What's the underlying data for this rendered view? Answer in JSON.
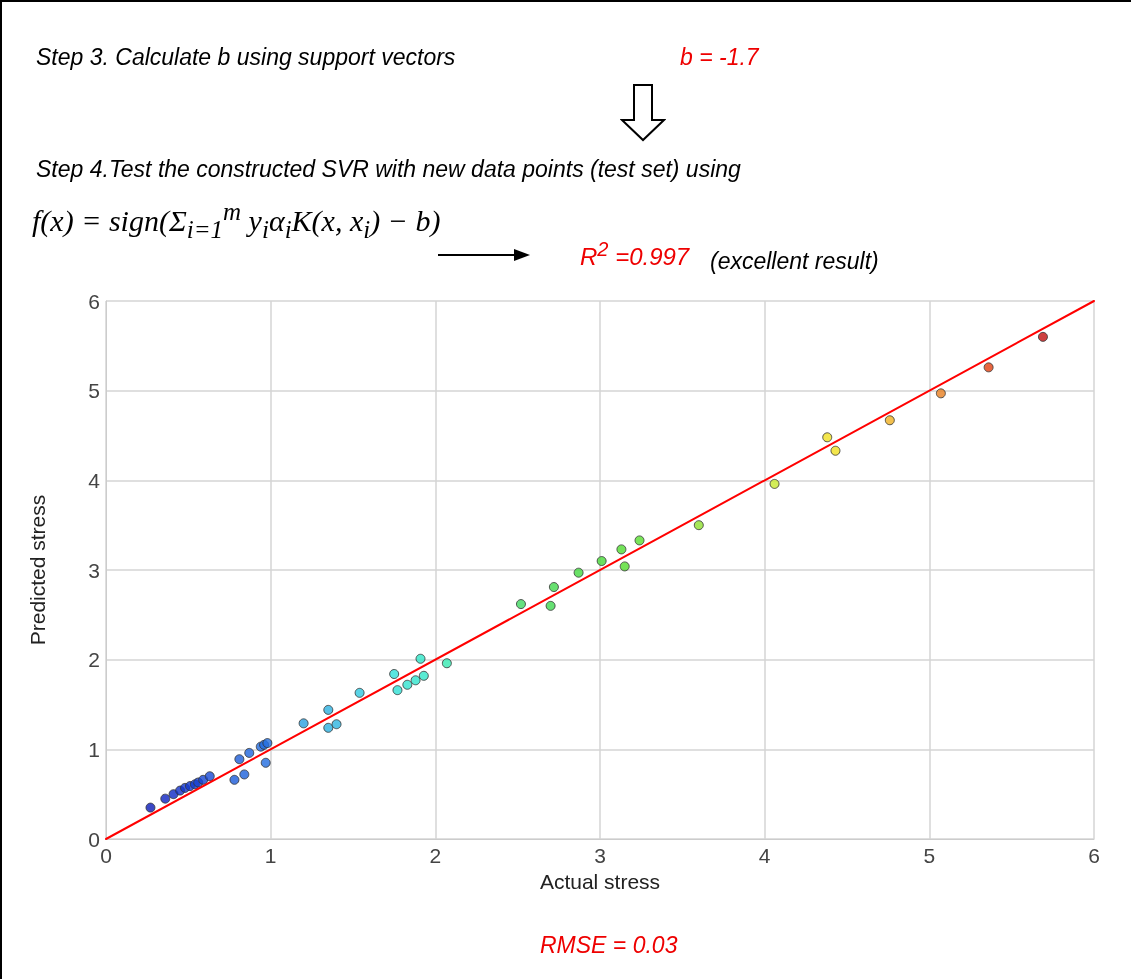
{
  "chart_data": {
    "type": "scatter",
    "annotations": [
      "Step 3. Calculate b using support vectors",
      "b = -1.7",
      "Step 4.Test the constructed SVR with new data points (test set) using",
      "f(x) = sign(Σ$_{i=1}$$^{m}$ y$_{i}$α$_{i}$K(x, x$_{i}$) − b)",
      "R$^{2}$ =0.997",
      "(excellent result)",
      "RMSE = 0.03"
    ],
    "xlabel": "Actual stress",
    "ylabel": "Predicted stress",
    "xlim": [
      0,
      6
    ],
    "xticks": [
      0,
      1,
      2,
      3,
      4,
      5,
      6
    ],
    "ylim": [
      0,
      6
    ],
    "yticks": [
      0,
      1,
      2,
      3,
      4,
      5,
      6
    ],
    "grid": true,
    "marker": "circle",
    "series": [
      {
        "x": [
          0.27,
          0.36,
          0.41,
          0.45,
          0.48,
          0.51,
          0.54,
          0.56,
          0.59,
          0.63,
          0.78,
          0.84,
          0.81,
          0.87,
          0.94,
          0.96,
          0.98,
          0.97,
          1.2,
          1.35,
          1.35,
          1.4,
          1.54,
          1.75,
          1.77,
          1.83,
          1.88,
          1.93,
          1.91,
          2.07,
          2.52,
          2.7,
          2.72,
          2.87,
          3.01,
          3.13,
          3.15,
          3.24,
          3.6,
          4.06,
          4.38,
          4.43,
          4.76,
          5.07,
          5.36,
          5.69
        ],
        "values": [
          0.35,
          0.45,
          0.5,
          0.54,
          0.57,
          0.59,
          0.61,
          0.63,
          0.66,
          0.7,
          0.66,
          0.72,
          0.89,
          0.96,
          1.03,
          1.05,
          1.07,
          0.85,
          1.29,
          1.44,
          1.24,
          1.28,
          1.63,
          1.84,
          1.66,
          1.72,
          1.77,
          1.82,
          2.01,
          1.96,
          2.62,
          2.6,
          2.81,
          2.97,
          3.1,
          3.23,
          3.04,
          3.33,
          3.5,
          3.96,
          4.48,
          4.33,
          4.67,
          4.97,
          5.26,
          5.6
        ],
        "colors": [
          "#0a1ab8",
          "#0c22c0",
          "#0e28c4",
          "#1030c8",
          "#1034cc",
          "#1238cc",
          "#123ccf",
          "#1440d0",
          "#1444d2",
          "#1648d4",
          "#1a5ad8",
          "#1c60da",
          "#1c5cd8",
          "#1e64dc",
          "#206ade",
          "#206cde",
          "#226ee0",
          "#206ce0",
          "#28a0e0",
          "#2cb0e0",
          "#2cb0e0",
          "#2cb4e0",
          "#30c8e0",
          "#30e0d8",
          "#30e0d4",
          "#30e4d0",
          "#30e4cc",
          "#30e6c8",
          "#30e6c8",
          "#34e8b0",
          "#40d860",
          "#40d850",
          "#42d84c",
          "#44d840",
          "#48da38",
          "#50dc30",
          "#52dc30",
          "#58de30",
          "#90e030",
          "#c8e830",
          "#f0e020",
          "#f0e020",
          "#f0b020",
          "#e88020",
          "#e04010",
          "#c01010"
        ]
      },
      {
        "type": "line",
        "x": [
          0,
          6
        ],
        "values": [
          0,
          6
        ],
        "color": "#ff0000",
        "marker": "none"
      }
    ]
  }
}
